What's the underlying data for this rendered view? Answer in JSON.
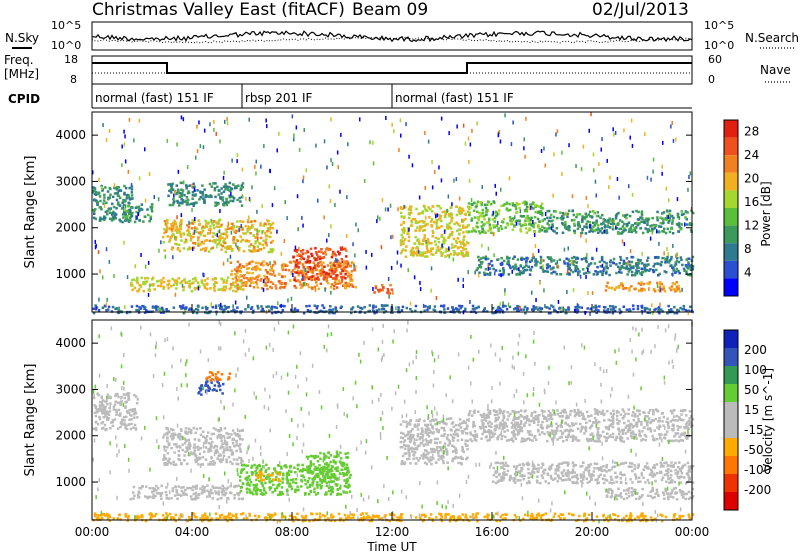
{
  "header": {
    "title": "Christmas Valley East (fitACF)",
    "beam": "Beam 09",
    "date": "02/Jul/2013"
  },
  "panels": {
    "nsky_label": "N.Sky",
    "nsearch_label": "N.Search",
    "nsky_ticks": [
      "10^5",
      "10^0"
    ],
    "nsearch_ticks": [
      "10^5",
      "10^0"
    ],
    "freq_label_1": "Freq.",
    "freq_label_2": "[MHz]",
    "freq_ticks": [
      "18",
      "8"
    ],
    "nave_label": "Nave",
    "nave_ticks": [
      "60",
      "0"
    ],
    "cpid_label": "CPID"
  },
  "cpid_segments": [
    {
      "label": "normal (fast) 151 IF",
      "start_hour": 0
    },
    {
      "label": "rbsp 201 IF",
      "start_hour": 6
    },
    {
      "label": "normal (fast) 151 IF",
      "start_hour": 12
    }
  ],
  "colors": {
    "power": [
      "#0000ff",
      "#2a4fd0",
      "#2f7a8e",
      "#3c9a5a",
      "#5bbf3c",
      "#a6d630",
      "#f0b020",
      "#f08020",
      "#f05020",
      "#e02010"
    ],
    "velocity": [
      "#dd0000",
      "#ee3300",
      "#ff7700",
      "#ffaa00",
      "#bbbbbb",
      "#bbbbbb",
      "#66cc33",
      "#339955",
      "#3355bb",
      "#1122bb"
    ]
  },
  "chart_data": [
    {
      "type": "heatmap",
      "title": "Power",
      "xlabel": "Time UT",
      "ylabel": "Slant Range [km]",
      "x_ticks": [
        "00:00",
        "04:00",
        "08:00",
        "12:00",
        "16:00",
        "20:00",
        "00:00"
      ],
      "xlim_hours": [
        0,
        24
      ],
      "ylim": [
        180,
        4500
      ],
      "y_ticks": [
        1000,
        2000,
        3000,
        4000
      ],
      "colorbar": {
        "label": "Power [dB]",
        "ticks": [
          4,
          8,
          12,
          16,
          20,
          24,
          28
        ],
        "range": [
          0,
          30
        ]
      },
      "regions": [
        {
          "t": [
            0.0,
            1.6
          ],
          "r": [
            2150,
            2950
          ],
          "v": 9
        },
        {
          "t": [
            1.2,
            2.4
          ],
          "r": [
            2150,
            2550
          ],
          "v": 10
        },
        {
          "t": [
            3.0,
            6.0
          ],
          "r": [
            2500,
            3000
          ],
          "v": 9
        },
        {
          "t": [
            2.8,
            7.2
          ],
          "r": [
            1500,
            2200
          ],
          "v": 19
        },
        {
          "t": [
            1.5,
            6.0
          ],
          "r": [
            650,
            950
          ],
          "v": 18
        },
        {
          "t": [
            5.5,
            10.5
          ],
          "r": [
            700,
            1300
          ],
          "v": 22
        },
        {
          "t": [
            8.0,
            10.2
          ],
          "r": [
            900,
            1600
          ],
          "v": 26
        },
        {
          "t": [
            11.2,
            12.0
          ],
          "r": [
            600,
            800
          ],
          "v": 24
        },
        {
          "t": [
            12.3,
            15.0
          ],
          "r": [
            1400,
            2500
          ],
          "v": 18
        },
        {
          "t": [
            15.0,
            18.0
          ],
          "r": [
            1900,
            2600
          ],
          "v": 14
        },
        {
          "t": [
            18.0,
            24.0
          ],
          "r": [
            1900,
            2400
          ],
          "v": 10
        },
        {
          "t": [
            15.3,
            24.0
          ],
          "r": [
            1000,
            1400
          ],
          "v": 8
        },
        {
          "t": [
            20.5,
            23.5
          ],
          "r": [
            650,
            850
          ],
          "v": 21
        },
        {
          "t": [
            0.0,
            24.0
          ],
          "r": [
            180,
            350
          ],
          "v": 6
        }
      ]
    },
    {
      "type": "heatmap",
      "title": "Velocity",
      "xlabel": "Time UT",
      "ylabel": "Slant Range [km]",
      "x_ticks": [
        "00:00",
        "04:00",
        "08:00",
        "12:00",
        "16:00",
        "20:00",
        "00:00"
      ],
      "xlim_hours": [
        0,
        24
      ],
      "ylim": [
        180,
        4500
      ],
      "y_ticks": [
        1000,
        2000,
        3000,
        4000
      ],
      "colorbar": {
        "label": "Velocity [m s^-1]",
        "ticks": [
          200,
          100,
          50,
          15,
          -15,
          -50,
          -100,
          -200
        ]
      },
      "regions": [
        {
          "t": [
            0.0,
            1.8
          ],
          "r": [
            2150,
            2950
          ],
          "v": 0
        },
        {
          "t": [
            2.8,
            6.0
          ],
          "r": [
            1400,
            2200
          ],
          "v": 0
        },
        {
          "t": [
            1.5,
            6.0
          ],
          "r": [
            650,
            950
          ],
          "v": 0
        },
        {
          "t": [
            5.8,
            10.3
          ],
          "r": [
            750,
            1400
          ],
          "v": 40
        },
        {
          "t": [
            8.5,
            10.2
          ],
          "r": [
            1000,
            1700
          ],
          "v": 40
        },
        {
          "t": [
            6.5,
            7.5
          ],
          "r": [
            1050,
            1250
          ],
          "v": -40
        },
        {
          "t": [
            4.2,
            5.2
          ],
          "r": [
            2900,
            3200
          ],
          "v": 150
        },
        {
          "t": [
            4.5,
            5.5
          ],
          "r": [
            3200,
            3400
          ],
          "v": -60
        },
        {
          "t": [
            12.3,
            15.0
          ],
          "r": [
            1400,
            2400
          ],
          "v": 0
        },
        {
          "t": [
            15.0,
            24.0
          ],
          "r": [
            1900,
            2600
          ],
          "v": 0
        },
        {
          "t": [
            16.0,
            24.0
          ],
          "r": [
            1000,
            1450
          ],
          "v": 0
        },
        {
          "t": [
            20.5,
            24.0
          ],
          "r": [
            650,
            900
          ],
          "v": 0
        },
        {
          "t": [
            0.0,
            24.0
          ],
          "r": [
            180,
            350
          ],
          "v": -40
        }
      ]
    }
  ]
}
